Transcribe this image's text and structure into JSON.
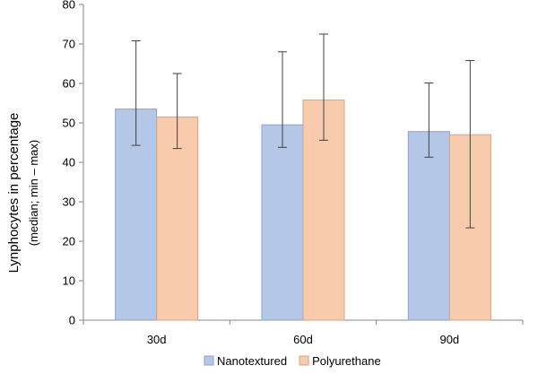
{
  "chart_data": {
    "type": "bar",
    "title": "",
    "xlabel": "",
    "ylabel": "Lynphocytes in percentage",
    "ylabel_sub": "(median;  min – max)",
    "ylim": [
      0,
      80
    ],
    "yticks": [
      0,
      10,
      20,
      30,
      40,
      50,
      60,
      70,
      80
    ],
    "grid": false,
    "legend_position": "bottom",
    "categories": [
      "30d",
      "60d",
      "90d"
    ],
    "series": [
      {
        "name": "Nanotextured",
        "color": "#b4c7e7",
        "edge": "#8ea3c9",
        "values": [
          53.5,
          49.5,
          47.8
        ],
        "min": [
          44.3,
          43.8,
          41.3
        ],
        "max": [
          70.8,
          68.0,
          60.1
        ]
      },
      {
        "name": "Polyurethane",
        "color": "#f8cbad",
        "edge": "#d9a384",
        "values": [
          51.5,
          55.8,
          47.0
        ],
        "min": [
          43.5,
          45.6,
          23.4
        ],
        "max": [
          62.5,
          72.5,
          65.8
        ]
      }
    ]
  }
}
